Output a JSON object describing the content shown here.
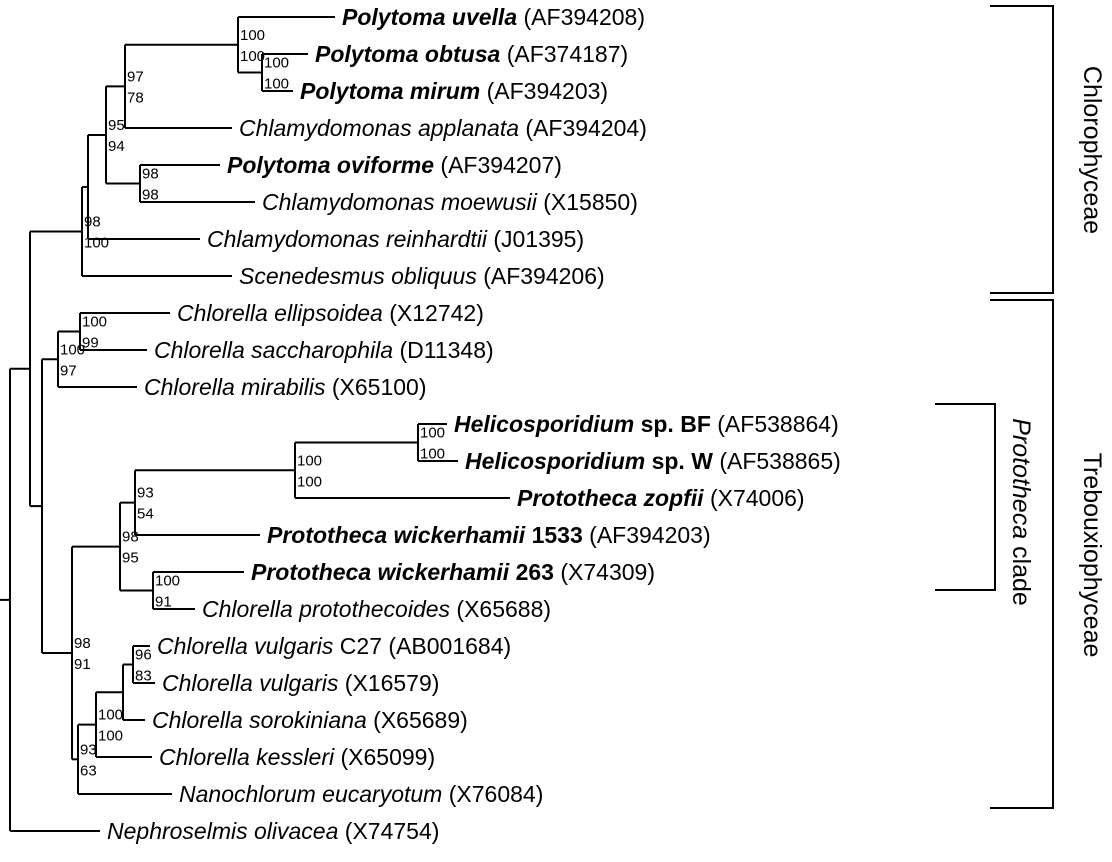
{
  "taxa": [
    {
      "name": "Polytoma uvella",
      "bold": true,
      "acc": "(AF394208)"
    },
    {
      "name": "Polytoma obtusa",
      "bold": true,
      "acc": "(AF374187)"
    },
    {
      "name": "Polytoma mirum",
      "bold": true,
      "acc": "(AF394203)"
    },
    {
      "name": "Chlamydomonas applanata",
      "bold": false,
      "acc": "(AF394204)"
    },
    {
      "name": "Polytoma oviforme",
      "bold": true,
      "acc": "(AF394207)"
    },
    {
      "name": "Chlamydomonas moewusii",
      "bold": false,
      "acc": "(X15850)"
    },
    {
      "name": "Chlamydomonas reinhardtii",
      "bold": false,
      "acc": "(J01395)"
    },
    {
      "name": "Scenedesmus obliquus",
      "bold": false,
      "acc": "(AF394206)"
    },
    {
      "name": "Chlorella ellipsoidea",
      "bold": false,
      "acc": "(X12742)"
    },
    {
      "name": "Chlorella saccharophila",
      "bold": false,
      "acc": "(D11348)"
    },
    {
      "name": "Chlorella mirabilis",
      "bold": false,
      "acc": "(X65100)"
    },
    {
      "name": "Helicosporidium",
      "suffix": " sp. BF",
      "bold": true,
      "acc": "(AF538864)"
    },
    {
      "name": "Helicosporidium",
      "suffix": " sp. W",
      "bold": true,
      "acc": "(AF538865)"
    },
    {
      "name": "Prototheca zopfii",
      "bold": true,
      "acc": "(X74006)"
    },
    {
      "name": "Prototheca wickerhamii",
      "suffix": " 1533",
      "bold": true,
      "acc": "(AF394203)"
    },
    {
      "name": "Prototheca wickerhamii",
      "suffix": " 263",
      "bold": true,
      "acc": "(X74309)"
    },
    {
      "name": "Chlorella protothecoides",
      "bold": false,
      "acc": "(X65688)"
    },
    {
      "name": "Chlorella vulgaris",
      "suffix": " C27",
      "bold": false,
      "acc": "(AB001684)"
    },
    {
      "name": "Chlorella vulgaris",
      "bold": false,
      "acc": "(X16579)"
    },
    {
      "name": "Chlorella sorokiniana",
      "bold": false,
      "acc": "(X65689)"
    },
    {
      "name": "Chlorella kessleri",
      "bold": false,
      "acc": "(X65099)"
    },
    {
      "name": "Nanochlorum eucaryotum",
      "bold": false,
      "acc": "(X76084)"
    },
    {
      "name": "Nephroselmis olivacea",
      "bold": false,
      "acc": "(X74754)"
    }
  ],
  "support": [
    {
      "top": "100",
      "bottom": "100"
    },
    {
      "top": "100",
      "bottom": "100"
    },
    {
      "top": "97",
      "bottom": "78"
    },
    {
      "top": "95",
      "bottom": "94"
    },
    {
      "top": "98",
      "bottom": "98"
    },
    {
      "top": "98",
      "bottom": "100"
    },
    {
      "top": "100",
      "bottom": "99"
    },
    {
      "top": "100",
      "bottom": "97"
    },
    {
      "top": "100",
      "bottom": "100"
    },
    {
      "top": "100",
      "bottom": "100"
    },
    {
      "top": "93",
      "bottom": "54"
    },
    {
      "top": "98",
      "bottom": "95"
    },
    {
      "top": "100",
      "bottom": "91"
    },
    {
      "top": "98",
      "bottom": "91"
    },
    {
      "top": "96",
      "bottom": "83"
    },
    {
      "top": "100",
      "bottom": "100"
    },
    {
      "top": "93",
      "bottom": "63"
    }
  ],
  "clades": {
    "chlorophyceae": "Chlorophyceae",
    "trebouxiophyceae": "Trebouxiophyceae",
    "prototheca_italic": "Prototheca",
    "prototheca_rest": " clade"
  }
}
